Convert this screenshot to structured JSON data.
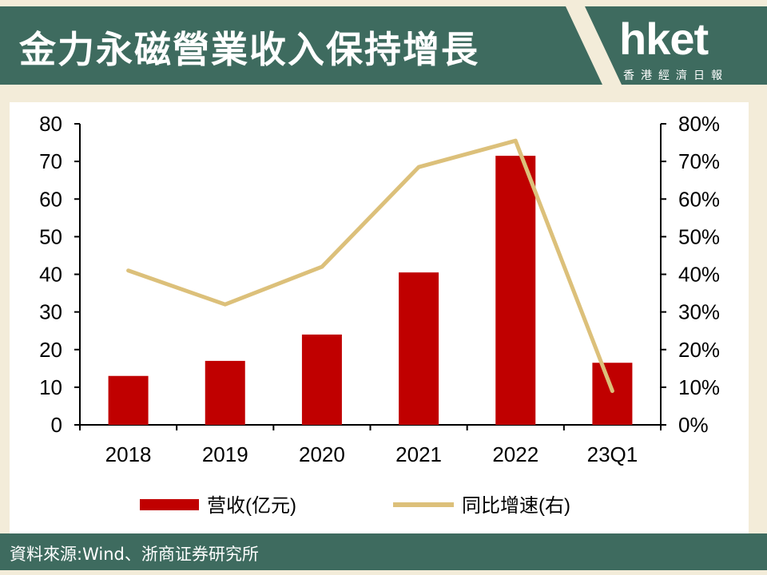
{
  "header": {
    "title": "金力永磁營業收入保持增長",
    "brand_name": "hket",
    "brand_subtitle": "香港經濟日報"
  },
  "footer": {
    "source": "資料來源:Wind、浙商证券研究所"
  },
  "colors": {
    "header_bg": "#3e6b5f",
    "page_bg": "#f3ecd9",
    "bar": "#c00000",
    "line": "#dcc07a"
  },
  "chart_data": {
    "type": "bar",
    "categories": [
      "2018",
      "2019",
      "2020",
      "2021",
      "2022",
      "23Q1"
    ],
    "series": [
      {
        "name": "营收(亿元)",
        "type": "bar",
        "axis": "left",
        "values": [
          13,
          17,
          24,
          40.5,
          71.5,
          16.5
        ]
      },
      {
        "name": "同比增速(右)",
        "type": "line",
        "axis": "right",
        "values": [
          0.41,
          0.32,
          0.42,
          0.685,
          0.755,
          0.09
        ]
      }
    ],
    "y_left": {
      "min": 0,
      "max": 80,
      "ticks": [
        "0",
        "10",
        "20",
        "30",
        "40",
        "50",
        "60",
        "70",
        "80"
      ]
    },
    "y_right": {
      "min": 0,
      "max": 0.8,
      "ticks": [
        "0%",
        "10%",
        "20%",
        "30%",
        "40%",
        "50%",
        "60%",
        "70%",
        "80%"
      ]
    },
    "legend_position": "bottom",
    "grid": false
  }
}
